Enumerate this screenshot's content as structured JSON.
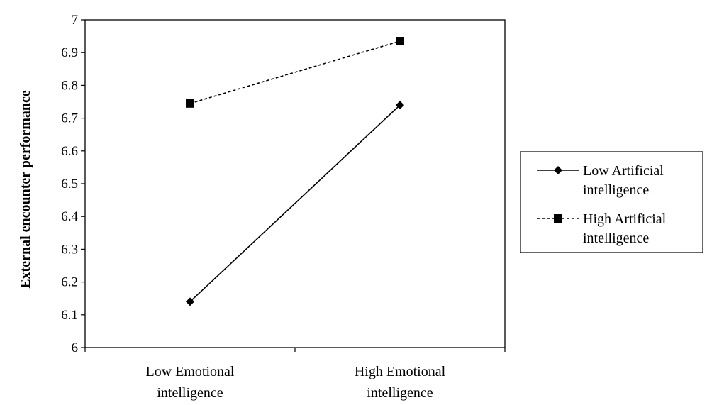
{
  "chart_data": {
    "type": "line",
    "title": "",
    "xlabel": "",
    "ylabel": "External encounter performance",
    "ylim": [
      6,
      7
    ],
    "yticks": [
      "6",
      "6.1",
      "6.2",
      "6.3",
      "6.4",
      "6.5",
      "6.6",
      "6.7",
      "6.8",
      "6.9",
      "7"
    ],
    "categories": [
      [
        "Low Emotional",
        "intelligence"
      ],
      [
        "High Emotional",
        "intelligence"
      ]
    ],
    "legend_position": "right",
    "grid": false,
    "series": [
      {
        "name": [
          "Low Artificial",
          "intelligence"
        ],
        "values": [
          6.14,
          6.74
        ],
        "marker": "diamond",
        "line_style": "solid",
        "color": "#000000"
      },
      {
        "name": [
          "High Artificial",
          "intelligence"
        ],
        "values": [
          6.745,
          6.935
        ],
        "marker": "square",
        "line_style": "dashed",
        "color": "#000000"
      }
    ]
  }
}
